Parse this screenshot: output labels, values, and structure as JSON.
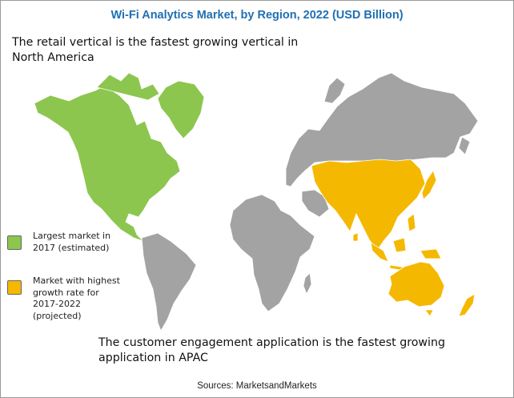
{
  "title": "Wi-Fi Analytics Market, by Region, 2022 (USD Billion)",
  "note_top": "The retail vertical is the fastest growing vertical in North America",
  "note_bottom": "The customer engagement application is the fastest growing application in APAC",
  "legend": [
    {
      "label": "Largest market in 2017 (estimated)",
      "color": "#8cc64f",
      "region": "North America"
    },
    {
      "label": "Market with highest growth rate for 2017-2022 (projected)",
      "color": "#f5b800",
      "region": "Asia Pacific"
    }
  ],
  "default_region_color": "#a3a3a3",
  "source": "Sources: MarketsandMarkets"
}
